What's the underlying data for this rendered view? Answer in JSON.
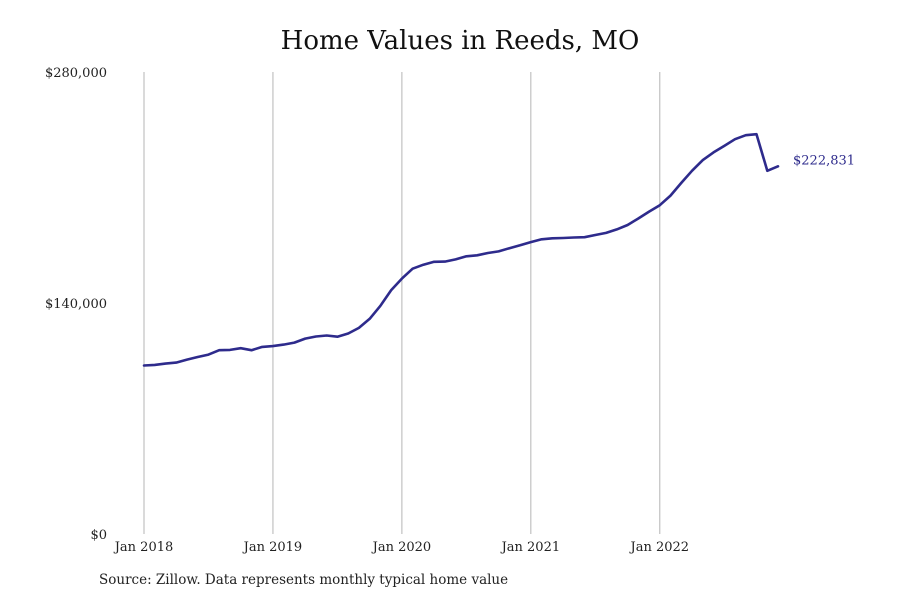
{
  "title": "Home Values in Reeds, MO",
  "source": "Source: Zillow. Data represents monthly typical home value",
  "chart_data": {
    "type": "line",
    "title": "Home Values in Reeds, MO",
    "xlabel": "",
    "ylabel": "",
    "ylim": [
      0,
      280000
    ],
    "xlim": [
      "2018-01",
      "2022-12"
    ],
    "y_ticks": [
      {
        "value": 0,
        "label": "$0"
      },
      {
        "value": 140000,
        "label": "$140,000"
      },
      {
        "value": 280000,
        "label": "$280,000"
      }
    ],
    "x_ticks": [
      {
        "value": "2018-01",
        "label": "Jan 2018"
      },
      {
        "value": "2019-01",
        "label": "Jan 2019"
      },
      {
        "value": "2020-01",
        "label": "Jan 2020"
      },
      {
        "value": "2021-01",
        "label": "Jan 2021"
      },
      {
        "value": "2022-01",
        "label": "Jan 2022"
      }
    ],
    "grid": {
      "vertical": true,
      "horizontal": false
    },
    "line_color": "#2e2b8c",
    "end_label": "$222,831",
    "series": [
      {
        "x": [
          "2018-01",
          "2018-02",
          "2018-03",
          "2018-04",
          "2018-05",
          "2018-06",
          "2018-07",
          "2018-08",
          "2018-09",
          "2018-10",
          "2018-11",
          "2018-12",
          "2019-01",
          "2019-02",
          "2019-03",
          "2019-04",
          "2019-05",
          "2019-06",
          "2019-07",
          "2019-08",
          "2019-09",
          "2019-10",
          "2019-11",
          "2019-12",
          "2020-01",
          "2020-02",
          "2020-03",
          "2020-04",
          "2020-05",
          "2020-06",
          "2020-07",
          "2020-08",
          "2020-09",
          "2020-10",
          "2020-11",
          "2020-12",
          "2021-01",
          "2021-02",
          "2021-03",
          "2021-04",
          "2021-05",
          "2021-06",
          "2021-07",
          "2021-08",
          "2021-09",
          "2021-10",
          "2021-11",
          "2021-12",
          "2022-01",
          "2022-02",
          "2022-03",
          "2022-04",
          "2022-05",
          "2022-06",
          "2022-07",
          "2022-08",
          "2022-09",
          "2022-10",
          "2022-11",
          "2022-12"
        ],
        "y": [
          102100,
          102500,
          103300,
          103900,
          105700,
          107300,
          108700,
          111400,
          111600,
          112600,
          111400,
          113400,
          113900,
          114800,
          116000,
          118400,
          119700,
          120300,
          119600,
          121500,
          124900,
          130400,
          138300,
          147800,
          154800,
          160800,
          163200,
          165000,
          165100,
          166400,
          168300,
          168900,
          170300,
          171300,
          173200,
          175000,
          176900,
          178600,
          179200,
          179400,
          179700,
          179900,
          181200,
          182500,
          184600,
          187300,
          191200,
          195400,
          199300,
          205100,
          212800,
          220100,
          226600,
          231300,
          235200,
          239300,
          241700,
          242300,
          220100,
          222831
        ]
      }
    ]
  }
}
